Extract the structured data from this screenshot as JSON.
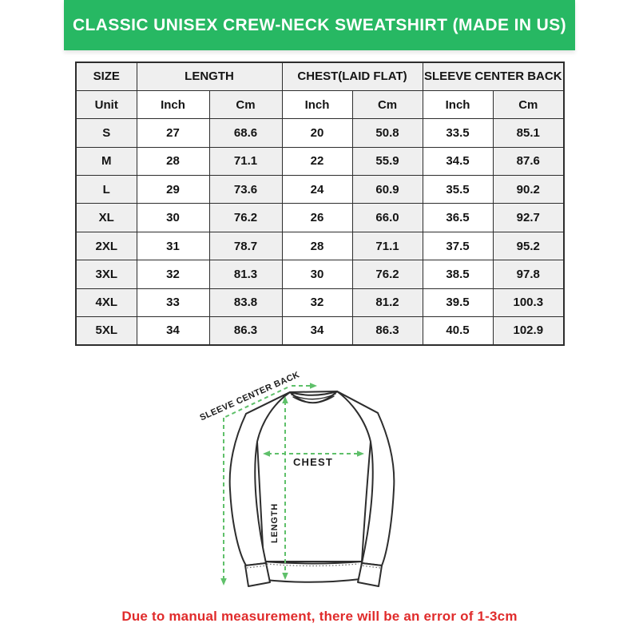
{
  "banner": {
    "title": "CLASSIC UNISEX CREW-NECK SWEATSHIRT (MADE IN US)",
    "bg_color": "#27b863",
    "text_color": "#ffffff"
  },
  "table": {
    "group_headers": [
      "SIZE",
      "LENGTH",
      "CHEST(LAID FLAT)",
      "SLEEVE CENTER BACK"
    ],
    "unit_row": [
      "Unit",
      "Inch",
      "Cm",
      "Inch",
      "Cm",
      "Inch",
      "Cm"
    ],
    "rows": [
      [
        "S",
        "27",
        "68.6",
        "20",
        "50.8",
        "33.5",
        "85.1"
      ],
      [
        "M",
        "28",
        "71.1",
        "22",
        "55.9",
        "34.5",
        "87.6"
      ],
      [
        "L",
        "29",
        "73.6",
        "24",
        "60.9",
        "35.5",
        "90.2"
      ],
      [
        "XL",
        "30",
        "76.2",
        "26",
        "66.0",
        "36.5",
        "92.7"
      ],
      [
        "2XL",
        "31",
        "78.7",
        "28",
        "71.1",
        "37.5",
        "95.2"
      ],
      [
        "3XL",
        "32",
        "81.3",
        "30",
        "76.2",
        "38.5",
        "97.8"
      ],
      [
        "4XL",
        "33",
        "83.8",
        "32",
        "81.2",
        "39.5",
        "100.3"
      ],
      [
        "5XL",
        "34",
        "86.3",
        "34",
        "86.3",
        "40.5",
        "102.9"
      ]
    ],
    "stripe_color": "#efefef",
    "border_color": "#2d2d2d"
  },
  "diagram": {
    "labels": {
      "sleeve_center_back": "SLEEVE CENTER BACK",
      "chest": "CHEST",
      "length": "LENGTH"
    },
    "dash_color": "#5fc06a"
  },
  "note": {
    "text": "Due to manual measurement, there will be an error of 1-3cm",
    "color": "#e02b2b"
  }
}
